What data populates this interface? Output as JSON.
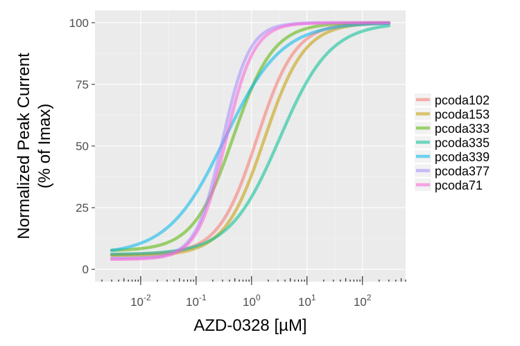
{
  "chart_data": {
    "type": "line",
    "title": "",
    "xlabel": "AZD-0328 [µM]",
    "ylabel_line1": "Normalized Peak Current",
    "ylabel_line2": "(% of Imax)",
    "x_scale": "log10",
    "xlim": [
      0.0015,
      600
    ],
    "ylim": [
      -5,
      105
    ],
    "x_ticks": [
      {
        "value": 0.01,
        "base": "10",
        "exp": "-2"
      },
      {
        "value": 0.1,
        "base": "10",
        "exp": "-1"
      },
      {
        "value": 1,
        "base": "10",
        "exp": "0"
      },
      {
        "value": 10,
        "base": "10",
        "exp": "1"
      },
      {
        "value": 100,
        "base": "10",
        "exp": "2"
      }
    ],
    "y_ticks": [
      0,
      25,
      50,
      75,
      100
    ],
    "grid": true,
    "legend_position": "right",
    "background": "#ebebeb",
    "x_range": [
      0.003,
      300
    ],
    "series": [
      {
        "name": "pcoda102",
        "color": "#f8766d",
        "bottom": 6,
        "top": 100,
        "ec50": 1.25,
        "hill": 1.25
      },
      {
        "name": "pcoda153",
        "color": "#c49a00",
        "bottom": 5.5,
        "top": 100,
        "ec50": 1.7,
        "hill": 1.2
      },
      {
        "name": "pcoda333",
        "color": "#53b400",
        "bottom": 7.5,
        "top": 100,
        "ec50": 0.47,
        "hill": 1.2
      },
      {
        "name": "pcoda335",
        "color": "#00c094",
        "bottom": 6,
        "top": 100,
        "ec50": 3.2,
        "hill": 0.95
      },
      {
        "name": "pcoda339",
        "color": "#00b6eb",
        "bottom": 6,
        "top": 100,
        "ec50": 0.33,
        "hill": 0.85
      },
      {
        "name": "pcoda377",
        "color": "#a58aff",
        "bottom": 4.5,
        "top": 100,
        "ec50": 0.3,
        "hill": 1.8
      },
      {
        "name": "pcoda71",
        "color": "#fb61d7",
        "bottom": 4,
        "top": 100,
        "ec50": 0.34,
        "hill": 1.7
      }
    ]
  }
}
